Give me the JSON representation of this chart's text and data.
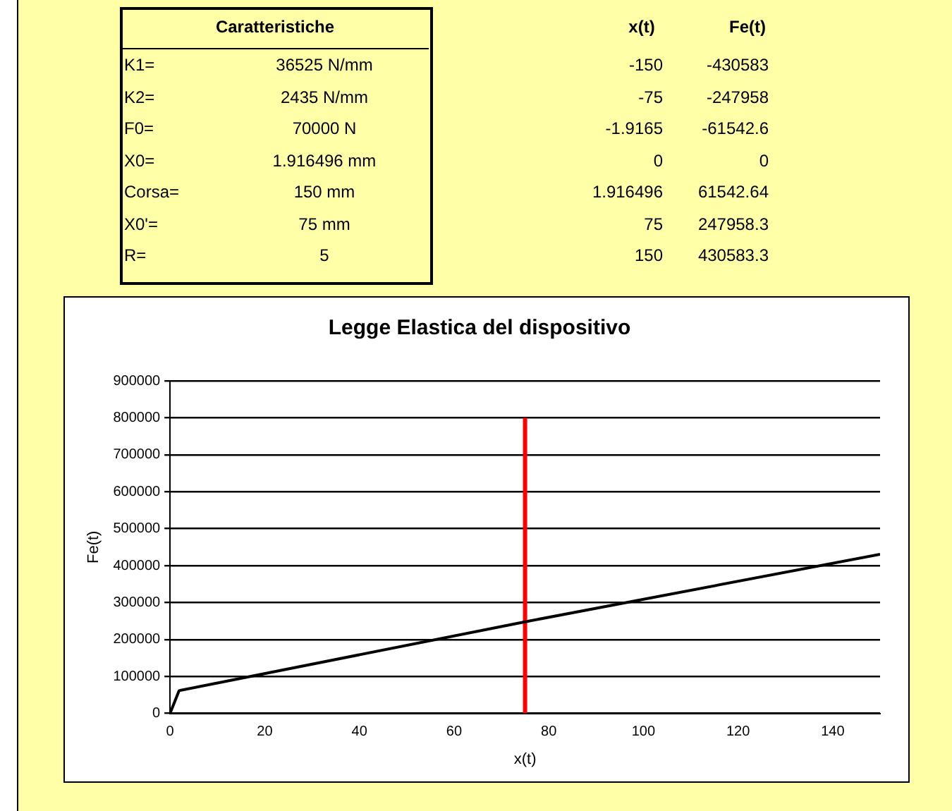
{
  "chart_data": [
    {
      "type": "other",
      "annotations": [
        "Caratteristiche",
        "K1=",
        "36525 N/mm",
        "K2=",
        "2435 N/mm",
        "F0=",
        "70000 N",
        "X0=",
        "1.916496 mm",
        "Corsa=",
        "150 mm",
        "X0'=",
        "75 mm",
        "R=",
        "5",
        "x(t)",
        "Fe(t)",
        "-150",
        "-430583",
        "-75",
        "-247958",
        "-1.9165",
        "-61542.6",
        "0",
        "0",
        "1.916496",
        "61542.64",
        "75",
        "247958.3",
        "150",
        "430583.3"
      ]
    },
    {
      "type": "line",
      "title": "Legge Elastica del dispositivo",
      "xlabel": "x(t)",
      "ylabel": "Fe(t)",
      "xlim": [
        0,
        150
      ],
      "xticks": [
        0,
        20,
        40,
        60,
        80,
        100,
        120,
        140
      ],
      "ylim": [
        0,
        900000
      ],
      "yticks": [
        0,
        100000,
        200000,
        300000,
        400000,
        500000,
        600000,
        700000,
        800000,
        900000
      ],
      "grid": "y",
      "legend": false,
      "marker": "none",
      "line_style": "solid",
      "series": [
        {
          "color": "#000000",
          "x": [
            0,
            1.916496,
            75,
            150
          ],
          "values": [
            0,
            61542.64,
            247958.3,
            430583.3
          ]
        },
        {
          "color": "#ff0000",
          "x": [
            75,
            75
          ],
          "values": [
            0,
            800000
          ]
        }
      ]
    }
  ]
}
